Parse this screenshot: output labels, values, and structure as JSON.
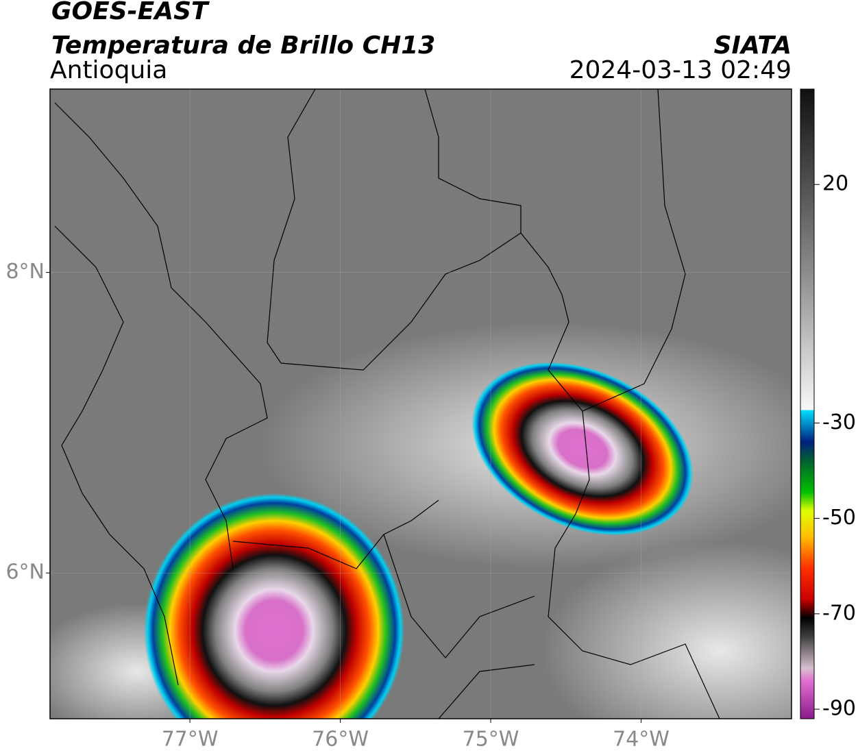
{
  "header": {
    "title": "GOES-EAST",
    "product": "Temperatura de Brillo CH13",
    "region": "Antioquia",
    "source": "SIATA",
    "datetime": "2024-03-13 02:49"
  },
  "map": {
    "lonlim": [
      -77.93,
      -73.0
    ],
    "latlim": [
      5.03,
      9.22
    ],
    "lon_ticks": [
      {
        "value": -77,
        "label": "77°W"
      },
      {
        "value": -76,
        "label": "76°W"
      },
      {
        "value": -75,
        "label": "75°W"
      },
      {
        "value": -74,
        "label": "74°W"
      }
    ],
    "lat_ticks": [
      {
        "value": 8,
        "label": "8°N"
      },
      {
        "value": 6,
        "label": "6°N"
      }
    ]
  },
  "colorbar": {
    "lim": [
      -92,
      40
    ],
    "ticks": [
      20,
      -30,
      -50,
      -70,
      -90
    ]
  }
}
